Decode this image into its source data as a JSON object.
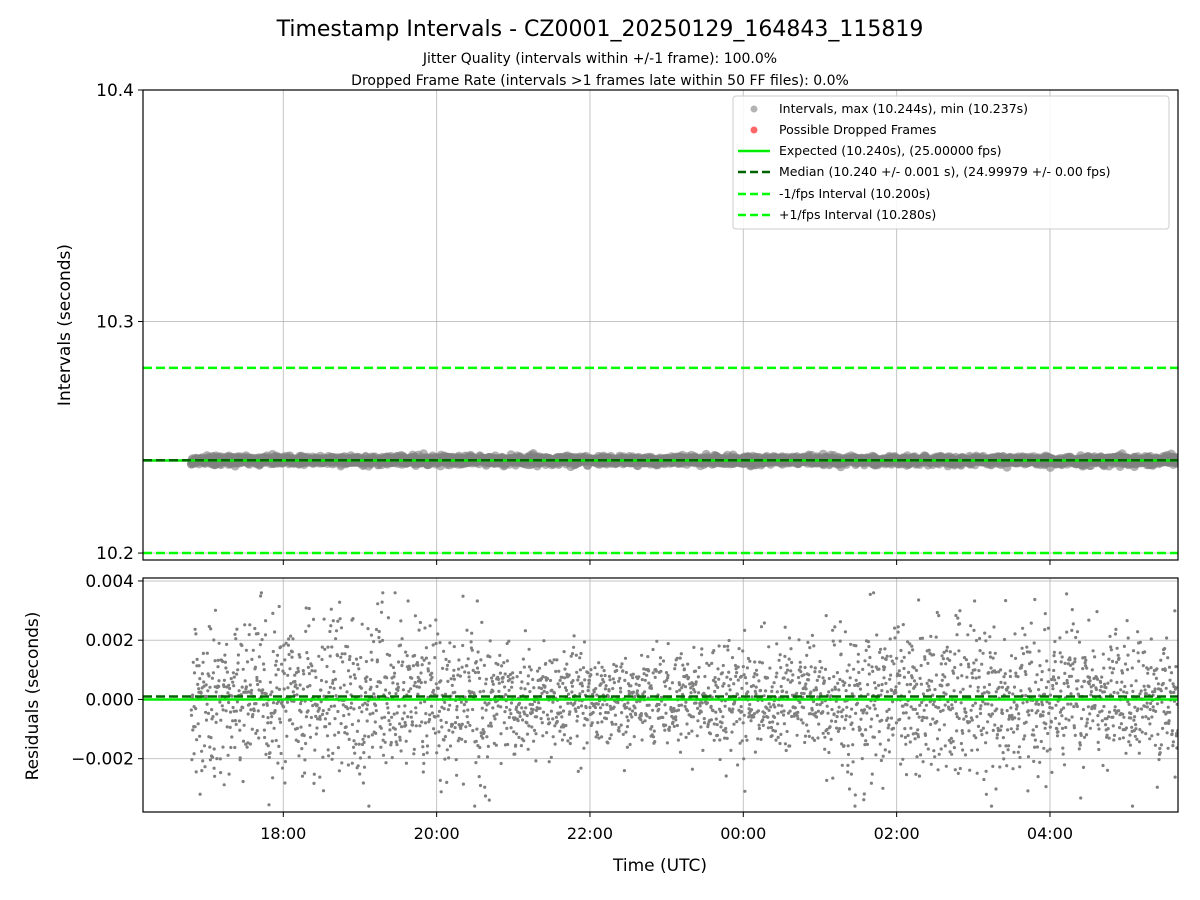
{
  "chart_data": {
    "type": "scatter",
    "title": "Timestamp Intervals - CZ0001_20250129_164843_115819",
    "subtitle_lines": [
      "Jitter Quality (intervals within +/-1 frame): 100.0%",
      "Dropped Frame Rate (intervals >1 frames late within 50 FF files): 0.0%"
    ],
    "xlabel": "Time (UTC)",
    "x_range_hours": [
      16.17,
      29.67
    ],
    "x_ticks": [
      {
        "value": 18,
        "label": "18:00"
      },
      {
        "value": 20,
        "label": "20:00"
      },
      {
        "value": 22,
        "label": "22:00"
      },
      {
        "value": 24,
        "label": "00:00"
      },
      {
        "value": 26,
        "label": "02:00"
      },
      {
        "value": 28,
        "label": "04:00"
      }
    ],
    "grid": true,
    "panels": [
      {
        "id": "intervals",
        "ylabel": "Intervals (seconds)",
        "ylim": [
          10.197,
          10.4
        ],
        "y_ticks": [
          {
            "value": 10.2,
            "label": "10.2"
          },
          {
            "value": 10.3,
            "label": "10.3"
          },
          {
            "value": 10.4,
            "label": "10.4"
          }
        ],
        "legend_position": "top-right",
        "series": [
          {
            "name": "Intervals, max (10.244s), min (10.237s)",
            "kind": "scatter",
            "color": "#808080",
            "opacity": 0.6,
            "x_start_hours": 16.8,
            "x_end_hours": 29.67,
            "center": 10.24,
            "spread": 0.0018
          },
          {
            "name": "Possible Dropped Frames",
            "kind": "scatter",
            "color": "#ff0000",
            "opacity": 0.6,
            "points": []
          },
          {
            "name": "Expected (10.240s), (25.00000 fps)",
            "kind": "hline",
            "y": 10.24,
            "color": "#00ee00",
            "dash": "solid"
          },
          {
            "name": "Median (10.240 +/- 0.001 s), (24.99979 +/- 0.00 fps)",
            "kind": "hline",
            "y": 10.2401,
            "color": "#006400",
            "dash": "dashed"
          },
          {
            "name": "-1/fps Interval (10.200s)",
            "kind": "hline",
            "y": 10.2,
            "color": "#00ff00",
            "dash": "dashed"
          },
          {
            "name": "+1/fps Interval (10.280s)",
            "kind": "hline",
            "y": 10.28,
            "color": "#00ff00",
            "dash": "dashed"
          }
        ]
      },
      {
        "id": "residuals",
        "ylabel": "Residuals (seconds)",
        "ylim": [
          -0.0038,
          0.0041
        ],
        "y_ticks": [
          {
            "value": 0.004,
            "label": "0.004"
          },
          {
            "value": 0.002,
            "label": "0.002"
          },
          {
            "value": 0.0,
            "label": "0.000"
          },
          {
            "value": -0.002,
            "label": "−0.002"
          }
        ],
        "series": [
          {
            "kind": "scatter",
            "color": "#808080",
            "x_start_hours": 16.8,
            "x_end_hours": 29.67,
            "sigma_early": 0.0014,
            "sigma_late": 0.0011,
            "max_abs": 0.0036
          },
          {
            "kind": "hline",
            "y": 0.0,
            "color": "#00ee00",
            "dash": "solid"
          },
          {
            "kind": "hline",
            "y": 0.0001,
            "color": "#006400",
            "dash": "dashed"
          }
        ]
      }
    ]
  }
}
